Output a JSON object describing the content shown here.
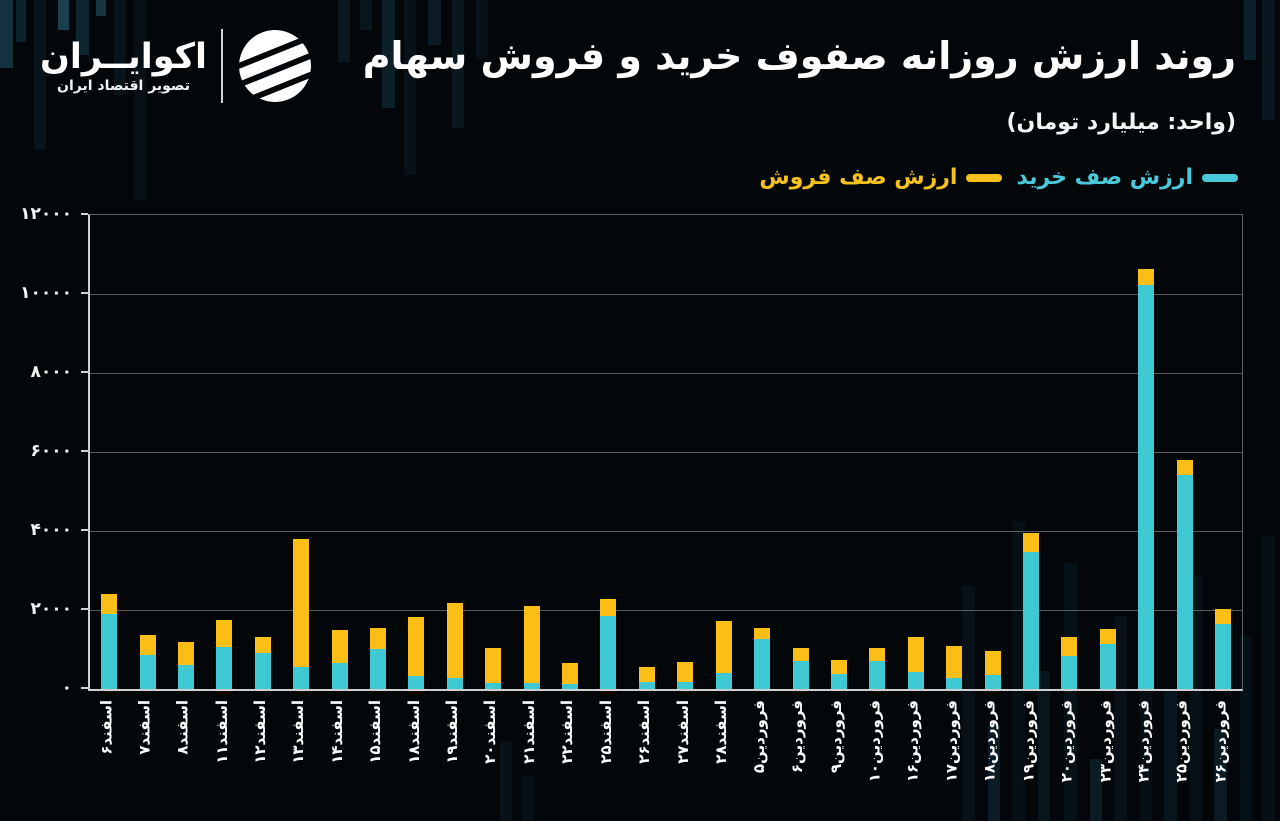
{
  "brand": {
    "name": "اکوایــران",
    "tagline": "تصویر اقتصاد ایران",
    "logo_icon": "striped-sphere-icon"
  },
  "header": {
    "title": "روند ارزش روزانه صفوف خرید و فروش سهام",
    "unit_note": "(واحد: میلیارد تومان)"
  },
  "legend": [
    {
      "label": "ارزش صف خرید",
      "color": "#49C9DA"
    },
    {
      "label": "ارزش صف فروش",
      "color": "#F6C01D"
    }
  ],
  "colors": {
    "background": "#04070a",
    "buy_bar": "#3EC8D2",
    "sell_bar": "#FBBE17",
    "axis": "#ccd0d1",
    "gridline": "#a8aeb2",
    "text": "#ffffff"
  },
  "chart_data": {
    "type": "bar",
    "stacked": true,
    "grid": true,
    "legend_position": "top-right",
    "ylim": [
      0,
      12000
    ],
    "yticks": [
      {
        "v": 0,
        "label": "۰"
      },
      {
        "v": 2000,
        "label": "۲۰۰۰"
      },
      {
        "v": 4000,
        "label": "۴۰۰۰"
      },
      {
        "v": 6000,
        "label": "۶۰۰۰"
      },
      {
        "v": 8000,
        "label": "۸۰۰۰"
      },
      {
        "v": 10000,
        "label": "۱۰۰۰۰"
      },
      {
        "v": 12000,
        "label": "۱۲۰۰۰"
      }
    ],
    "categories": [
      "اسفند۶",
      "اسفند۷",
      "اسفند۸",
      "اسفند۱۱",
      "اسفند۱۲",
      "اسفند۱۳",
      "اسفند۱۴",
      "اسفند۱۵",
      "اسفند۱۸",
      "اسفند۱۹",
      "اسفند۲۰",
      "اسفند۲۱",
      "اسفند۲۲",
      "اسفند۲۵",
      "اسفند۲۶",
      "اسفند۲۷",
      "اسفند۲۸",
      "فروردین۵",
      "فروردین۶",
      "فروردین۹",
      "فروردین۱۰",
      "فروردین۱۶",
      "فروردین۱۷",
      "فروردین۱۸",
      "فروردین۱۹",
      "فروردین۲۰",
      "فروردین۲۳",
      "فروردین۲۴",
      "فروردین۲۵",
      "فروردین۲۶"
    ],
    "series": [
      {
        "name": "ارزش صف خرید",
        "color": "#3EC8D2",
        "values": [
          1900,
          850,
          620,
          1070,
          910,
          570,
          660,
          1010,
          330,
          290,
          150,
          140,
          130,
          1850,
          190,
          170,
          400,
          1270,
          720,
          380,
          715,
          440,
          280,
          360,
          3470,
          840,
          1140,
          10230,
          5430,
          1650
        ]
      },
      {
        "name": "ارزش صف فروش",
        "color": "#FBBE17",
        "values": [
          510,
          530,
          580,
          680,
          410,
          3220,
          840,
          540,
          1500,
          1890,
          900,
          1950,
          530,
          420,
          360,
          510,
          1330,
          270,
          330,
          360,
          320,
          870,
          800,
          590,
          470,
          465,
          380,
          400,
          380,
          380
        ]
      }
    ]
  }
}
